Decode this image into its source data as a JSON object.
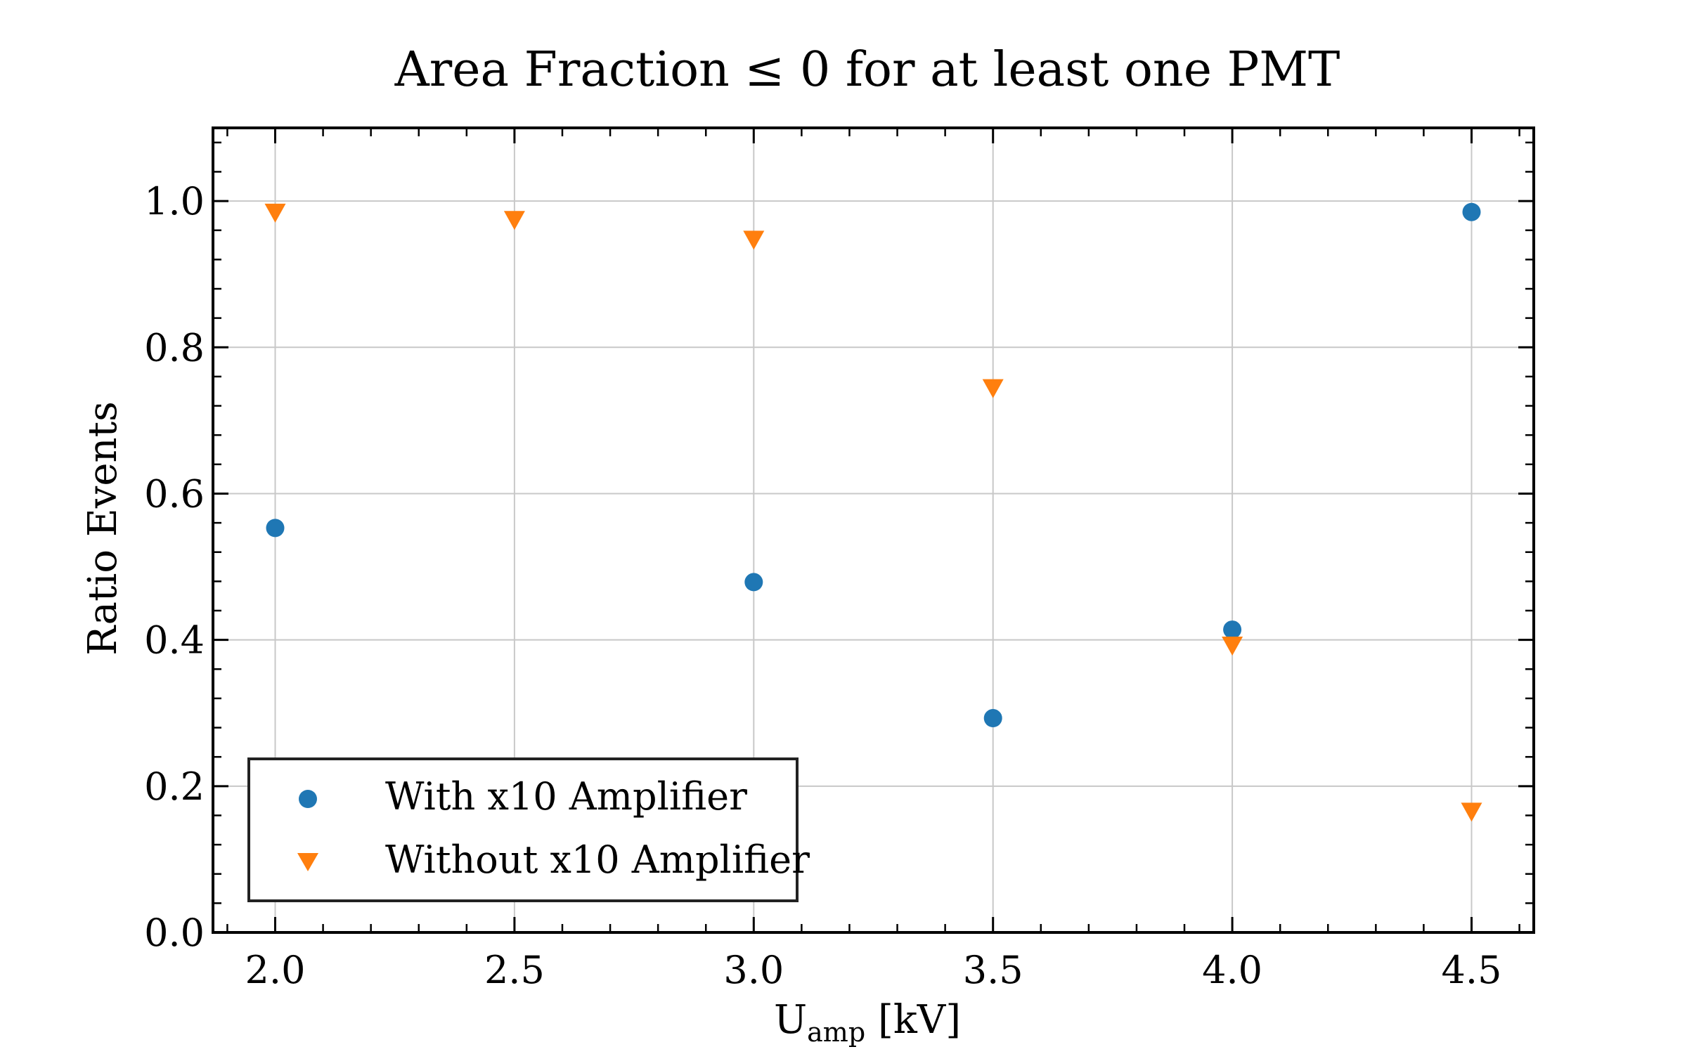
{
  "chart_data": {
    "type": "scatter",
    "title": "Area Fraction ≤ 0 for at least one PMT",
    "xlabel": {
      "main": "U",
      "sub": "amp",
      "unit": " [kV]"
    },
    "ylabel": "Ratio Events",
    "xlim": [
      1.87,
      4.63
    ],
    "ylim": [
      0.0,
      1.1
    ],
    "xticks": [
      "2.0",
      "2.5",
      "3.0",
      "3.5",
      "4.0",
      "4.5"
    ],
    "yticks": [
      "0.0",
      "0.2",
      "0.4",
      "0.6",
      "0.8",
      "1.0"
    ],
    "grid": true,
    "legend_position": "lower-left",
    "series": [
      {
        "name": "With x10 Amplifier",
        "marker": "circle",
        "color": "#1f77b4",
        "points": [
          [
            2.0,
            0.553
          ],
          [
            3.0,
            0.479
          ],
          [
            3.5,
            0.293
          ],
          [
            4.0,
            0.414
          ],
          [
            4.5,
            0.985
          ]
        ]
      },
      {
        "name": "Without x10 Amplifier",
        "marker": "triangle-down",
        "color": "#ff7f0e",
        "points": [
          [
            2.0,
            0.982
          ],
          [
            2.5,
            0.972
          ],
          [
            3.0,
            0.945
          ],
          [
            3.5,
            0.742
          ],
          [
            4.0,
            0.39
          ],
          [
            4.5,
            0.163
          ]
        ]
      }
    ]
  }
}
